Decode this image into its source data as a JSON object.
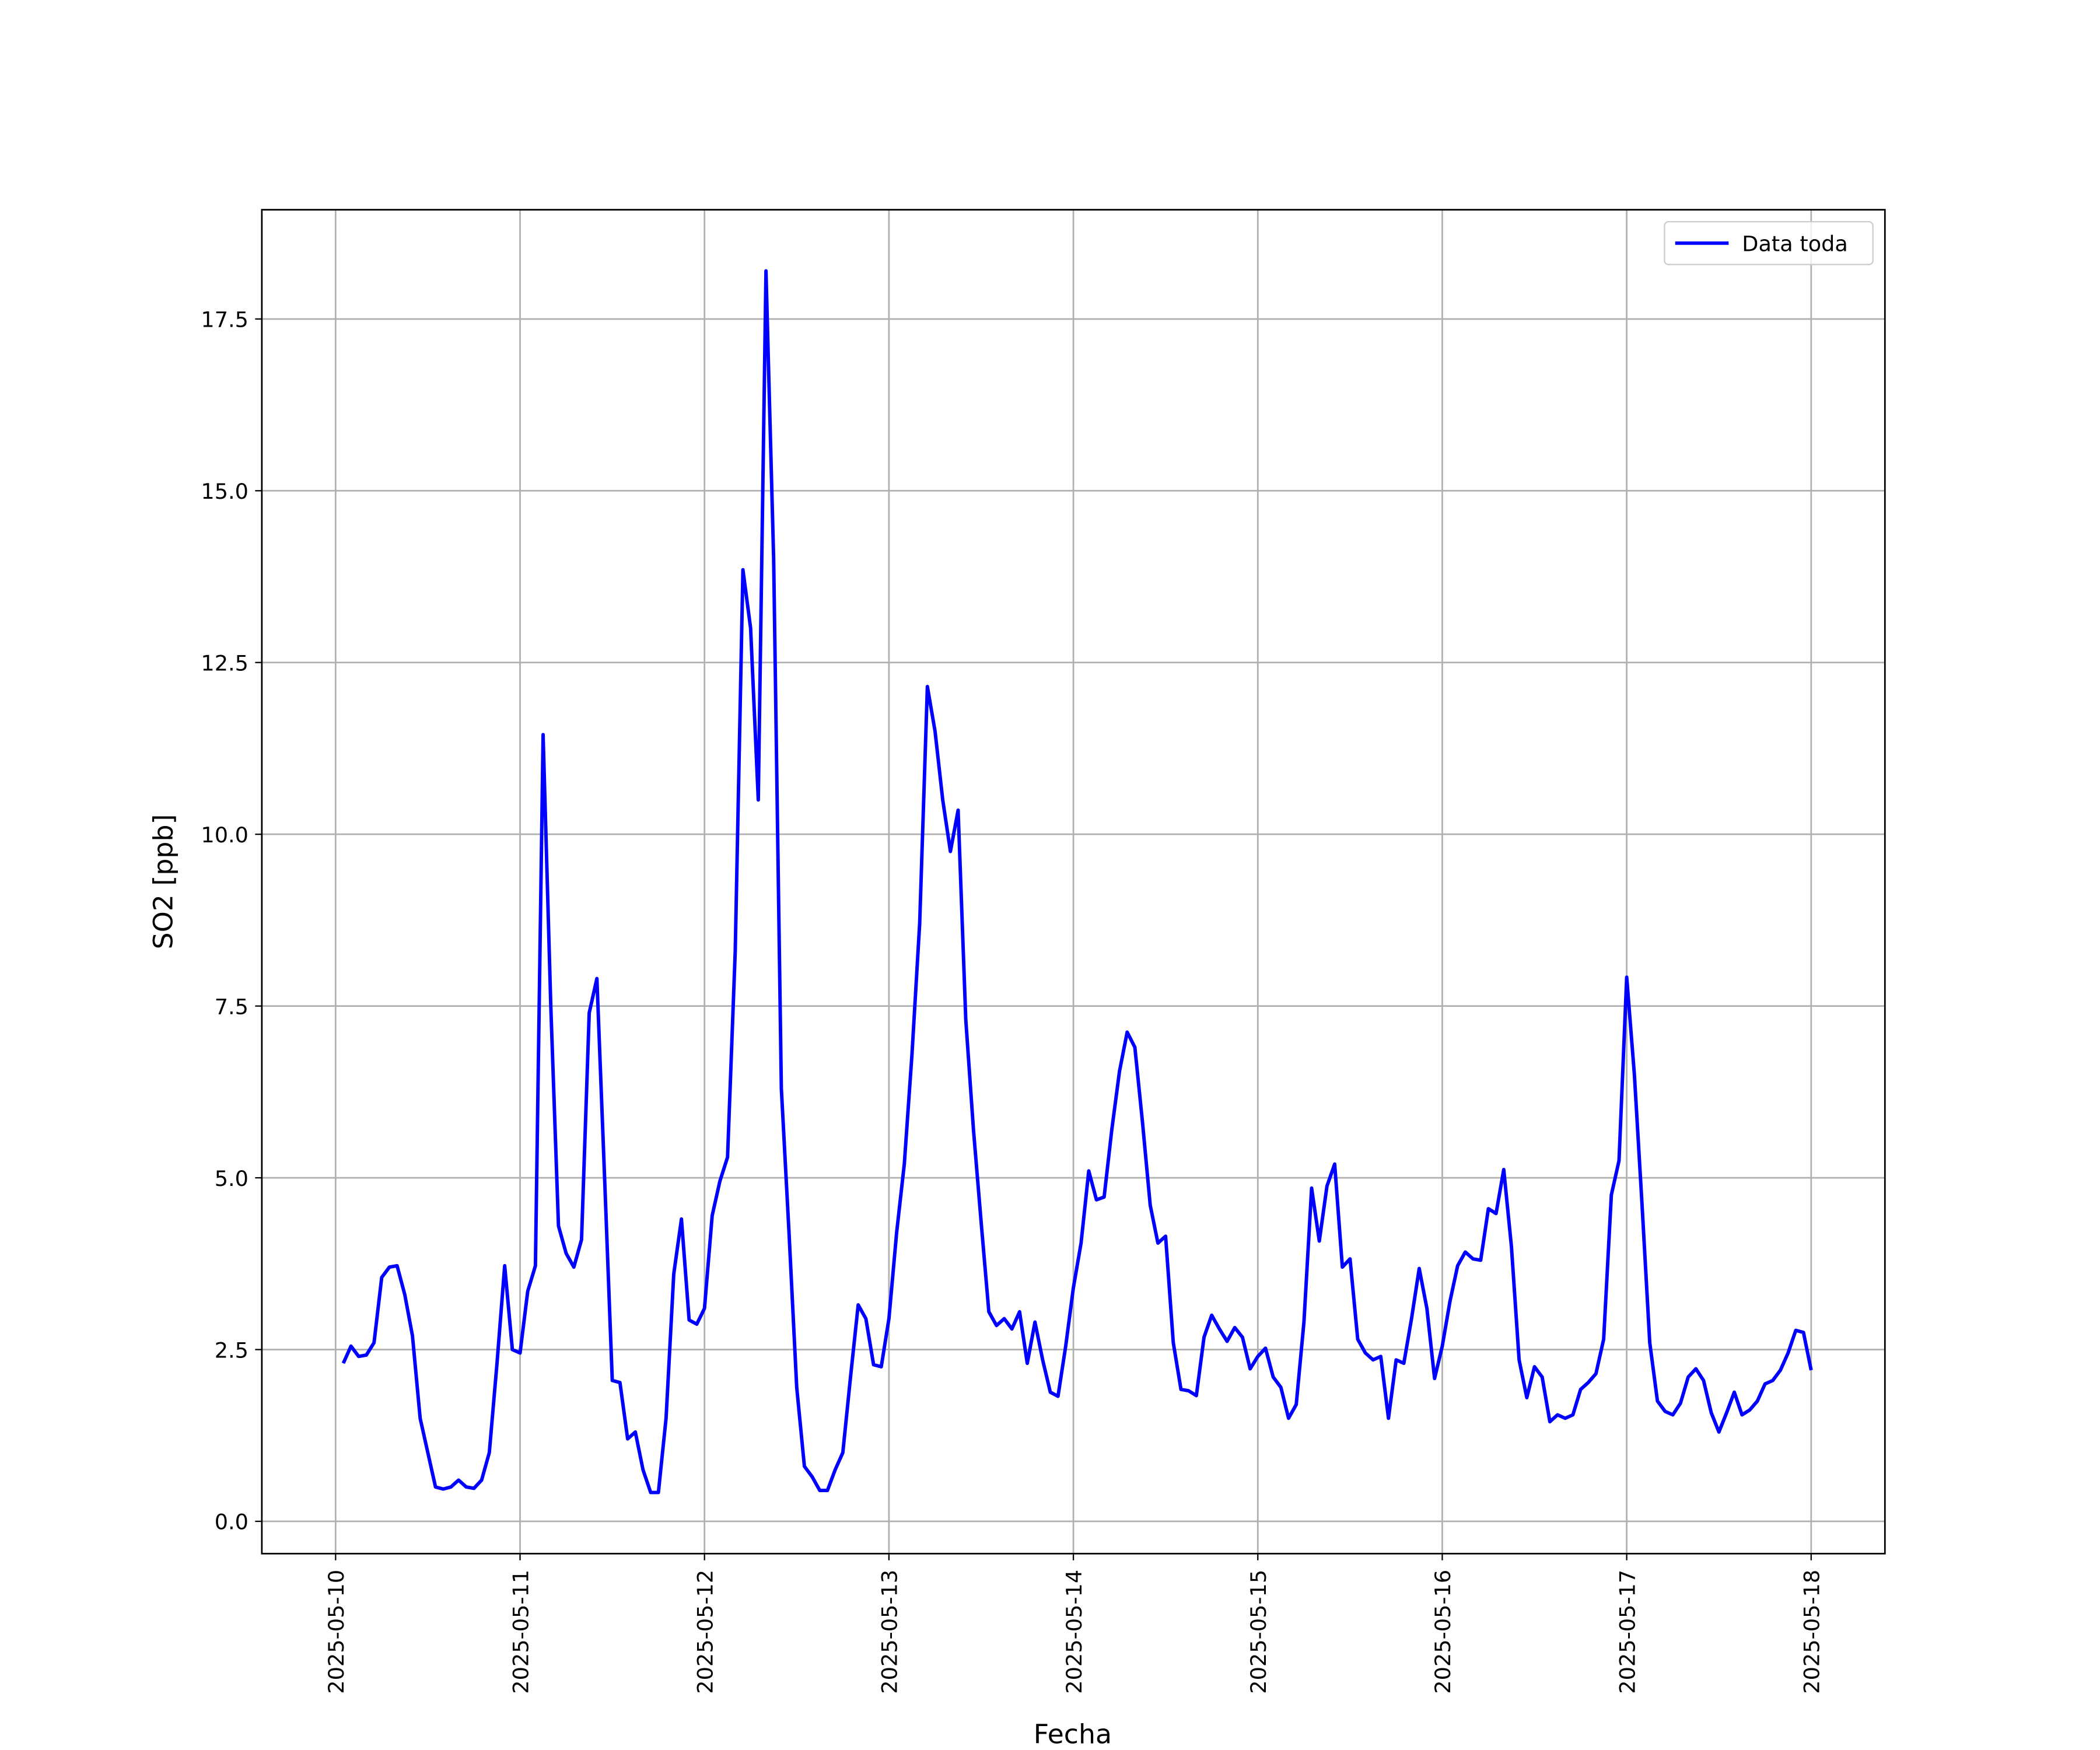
{
  "chart_data": {
    "type": "line",
    "xlabel": "Fecha",
    "ylabel": "SO2 [ppb]",
    "legend": "upper right",
    "grid": true,
    "x": [
      "2025-05-10 01:00",
      "2025-05-10 02:00",
      "2025-05-10 03:00",
      "2025-05-10 04:00",
      "2025-05-10 05:00",
      "2025-05-10 06:00",
      "2025-05-10 07:00",
      "2025-05-10 08:00",
      "2025-05-10 09:00",
      "2025-05-10 10:00",
      "2025-05-10 11:00",
      "2025-05-10 12:00",
      "2025-05-10 13:00",
      "2025-05-10 14:00",
      "2025-05-10 15:00",
      "2025-05-10 16:00",
      "2025-05-10 17:00",
      "2025-05-10 18:00",
      "2025-05-10 19:00",
      "2025-05-10 20:00",
      "2025-05-10 21:00",
      "2025-05-10 22:00",
      "2025-05-10 23:00",
      "2025-05-11 00:00",
      "2025-05-11 01:00",
      "2025-05-11 02:00",
      "2025-05-11 03:00",
      "2025-05-11 04:00",
      "2025-05-11 05:00",
      "2025-05-11 06:00",
      "2025-05-11 07:00",
      "2025-05-11 08:00",
      "2025-05-11 09:00",
      "2025-05-11 10:00",
      "2025-05-11 11:00",
      "2025-05-11 12:00",
      "2025-05-11 13:00",
      "2025-05-11 14:00",
      "2025-05-11 15:00",
      "2025-05-11 16:00",
      "2025-05-11 17:00",
      "2025-05-11 18:00",
      "2025-05-11 19:00",
      "2025-05-11 20:00",
      "2025-05-11 21:00",
      "2025-05-11 22:00",
      "2025-05-11 23:00",
      "2025-05-12 00:00",
      "2025-05-12 01:00",
      "2025-05-12 02:00",
      "2025-05-12 03:00",
      "2025-05-12 04:00",
      "2025-05-12 05:00",
      "2025-05-12 06:00",
      "2025-05-12 07:00",
      "2025-05-12 08:00",
      "2025-05-12 09:00",
      "2025-05-12 10:00",
      "2025-05-12 11:00",
      "2025-05-12 12:00",
      "2025-05-12 13:00",
      "2025-05-12 14:00",
      "2025-05-12 15:00",
      "2025-05-12 16:00",
      "2025-05-12 17:00",
      "2025-05-12 18:00",
      "2025-05-12 19:00",
      "2025-05-12 20:00",
      "2025-05-12 21:00",
      "2025-05-12 22:00",
      "2025-05-12 23:00",
      "2025-05-13 00:00",
      "2025-05-13 01:00",
      "2025-05-13 02:00",
      "2025-05-13 03:00",
      "2025-05-13 04:00",
      "2025-05-13 05:00",
      "2025-05-13 06:00",
      "2025-05-13 07:00",
      "2025-05-13 08:00",
      "2025-05-13 09:00",
      "2025-05-13 10:00",
      "2025-05-13 11:00",
      "2025-05-13 12:00",
      "2025-05-13 13:00",
      "2025-05-13 14:00",
      "2025-05-13 15:00",
      "2025-05-13 16:00",
      "2025-05-13 17:00",
      "2025-05-13 18:00",
      "2025-05-13 19:00",
      "2025-05-13 20:00",
      "2025-05-13 21:00",
      "2025-05-13 22:00",
      "2025-05-13 23:00",
      "2025-05-14 00:00",
      "2025-05-14 01:00",
      "2025-05-14 02:00",
      "2025-05-14 03:00",
      "2025-05-14 04:00",
      "2025-05-14 05:00",
      "2025-05-14 06:00",
      "2025-05-14 07:00",
      "2025-05-14 08:00",
      "2025-05-14 09:00",
      "2025-05-14 10:00",
      "2025-05-14 11:00",
      "2025-05-14 12:00",
      "2025-05-14 13:00",
      "2025-05-14 14:00",
      "2025-05-14 15:00",
      "2025-05-14 16:00",
      "2025-05-14 17:00",
      "2025-05-14 18:00",
      "2025-05-14 19:00",
      "2025-05-14 20:00",
      "2025-05-14 21:00",
      "2025-05-14 22:00",
      "2025-05-14 23:00",
      "2025-05-15 00:00",
      "2025-05-15 01:00",
      "2025-05-15 02:00",
      "2025-05-15 03:00",
      "2025-05-15 04:00",
      "2025-05-15 05:00",
      "2025-05-15 06:00",
      "2025-05-15 07:00",
      "2025-05-15 08:00",
      "2025-05-15 09:00",
      "2025-05-15 10:00",
      "2025-05-15 11:00",
      "2025-05-15 12:00",
      "2025-05-15 13:00",
      "2025-05-15 14:00",
      "2025-05-15 15:00",
      "2025-05-15 16:00",
      "2025-05-15 17:00",
      "2025-05-15 18:00",
      "2025-05-15 19:00",
      "2025-05-15 20:00",
      "2025-05-15 21:00",
      "2025-05-15 22:00",
      "2025-05-15 23:00",
      "2025-05-16 00:00",
      "2025-05-16 01:00",
      "2025-05-16 02:00",
      "2025-05-16 03:00",
      "2025-05-16 04:00",
      "2025-05-16 05:00",
      "2025-05-16 06:00",
      "2025-05-16 07:00",
      "2025-05-16 08:00",
      "2025-05-16 09:00",
      "2025-05-16 10:00",
      "2025-05-16 11:00",
      "2025-05-16 12:00",
      "2025-05-16 13:00",
      "2025-05-16 14:00",
      "2025-05-16 15:00",
      "2025-05-16 16:00",
      "2025-05-16 17:00",
      "2025-05-16 18:00",
      "2025-05-16 19:00",
      "2025-05-16 20:00",
      "2025-05-16 21:00",
      "2025-05-16 22:00",
      "2025-05-16 23:00",
      "2025-05-17 00:00",
      "2025-05-17 01:00",
      "2025-05-17 02:00",
      "2025-05-17 03:00",
      "2025-05-17 04:00",
      "2025-05-17 05:00",
      "2025-05-17 06:00",
      "2025-05-17 07:00",
      "2025-05-17 08:00",
      "2025-05-17 09:00",
      "2025-05-17 10:00",
      "2025-05-17 11:00",
      "2025-05-17 12:00",
      "2025-05-17 13:00",
      "2025-05-17 14:00",
      "2025-05-17 15:00",
      "2025-05-17 16:00",
      "2025-05-17 17:00",
      "2025-05-17 18:00",
      "2025-05-17 19:00",
      "2025-05-17 20:00",
      "2025-05-17 21:00",
      "2025-05-17 22:00",
      "2025-05-17 23:00",
      "2025-05-18 00:00"
    ],
    "series": [
      {
        "name": "Data toda",
        "color": "#0000ff",
        "values": [
          2.3,
          2.55,
          2.4,
          2.42,
          2.6,
          3.55,
          3.7,
          3.72,
          3.3,
          2.7,
          1.5,
          1.0,
          0.5,
          0.47,
          0.5,
          0.6,
          0.5,
          0.48,
          0.6,
          1.0,
          2.3,
          3.72,
          2.5,
          2.45,
          3.35,
          3.72,
          11.45,
          7.5,
          4.3,
          3.9,
          3.7,
          4.1,
          7.4,
          7.9,
          5.0,
          2.05,
          2.02,
          1.2,
          1.3,
          0.75,
          0.42,
          0.42,
          1.5,
          3.6,
          4.4,
          2.93,
          2.87,
          3.1,
          4.45,
          4.95,
          5.3,
          8.3,
          13.85,
          13.0,
          10.5,
          18.2,
          14.0,
          6.3,
          4.2,
          1.95,
          0.8,
          0.65,
          0.45,
          0.45,
          0.75,
          1.0,
          2.1,
          3.15,
          2.95,
          2.28,
          2.25,
          2.95,
          4.2,
          5.2,
          6.8,
          8.7,
          12.15,
          11.5,
          10.5,
          9.75,
          10.35,
          7.3,
          5.7,
          4.35,
          3.05,
          2.85,
          2.95,
          2.8,
          3.05,
          2.3,
          2.9,
          2.35,
          1.88,
          1.82,
          2.55,
          3.4,
          4.05,
          5.1,
          4.68,
          4.72,
          5.7,
          6.55,
          7.12,
          6.9,
          5.8,
          4.6,
          4.05,
          4.15,
          2.6,
          1.92,
          1.9,
          1.83,
          2.68,
          3.0,
          2.8,
          2.62,
          2.82,
          2.68,
          2.22,
          2.4,
          2.52,
          2.1,
          1.95,
          1.5,
          1.7,
          2.9,
          4.85,
          4.08,
          4.88,
          5.2,
          3.7,
          3.82,
          2.65,
          2.45,
          2.35,
          2.4,
          1.5,
          2.35,
          2.3,
          2.95,
          3.68,
          3.1,
          2.08,
          2.55,
          3.2,
          3.72,
          3.92,
          3.82,
          3.8,
          4.55,
          4.48,
          5.12,
          4.0,
          2.35,
          1.8,
          2.25,
          2.1,
          1.45,
          1.55,
          1.5,
          1.55,
          1.92,
          2.02,
          2.15,
          2.65,
          4.75,
          5.25,
          7.92,
          6.5,
          4.6,
          2.6,
          1.75,
          1.6,
          1.55,
          1.72,
          2.1,
          2.22,
          2.05,
          1.58,
          1.3,
          1.58,
          1.88,
          1.55,
          1.62,
          1.75,
          2.0,
          2.05,
          2.2,
          2.45,
          2.78,
          2.75,
          2.2
        ]
      }
    ],
    "xlim": [
      "2025-05-09 14:24",
      "2025-05-18 09:36"
    ],
    "xticks": [
      "2025-05-10",
      "2025-05-11",
      "2025-05-12",
      "2025-05-13",
      "2025-05-14",
      "2025-05-15",
      "2025-05-16",
      "2025-05-17",
      "2025-05-18"
    ],
    "ylim": [
      -0.47,
      19.09
    ],
    "yticks": [
      {
        "value": 0,
        "label": "0.0"
      },
      {
        "value": 2.5,
        "label": "2.5"
      },
      {
        "value": 5,
        "label": "5.0"
      },
      {
        "value": 7.5,
        "label": "7.5"
      },
      {
        "value": 10,
        "label": "10.0"
      },
      {
        "value": 12.5,
        "label": "12.5"
      },
      {
        "value": 15,
        "label": "15.0"
      },
      {
        "value": 17.5,
        "label": "17.5"
      }
    ]
  }
}
